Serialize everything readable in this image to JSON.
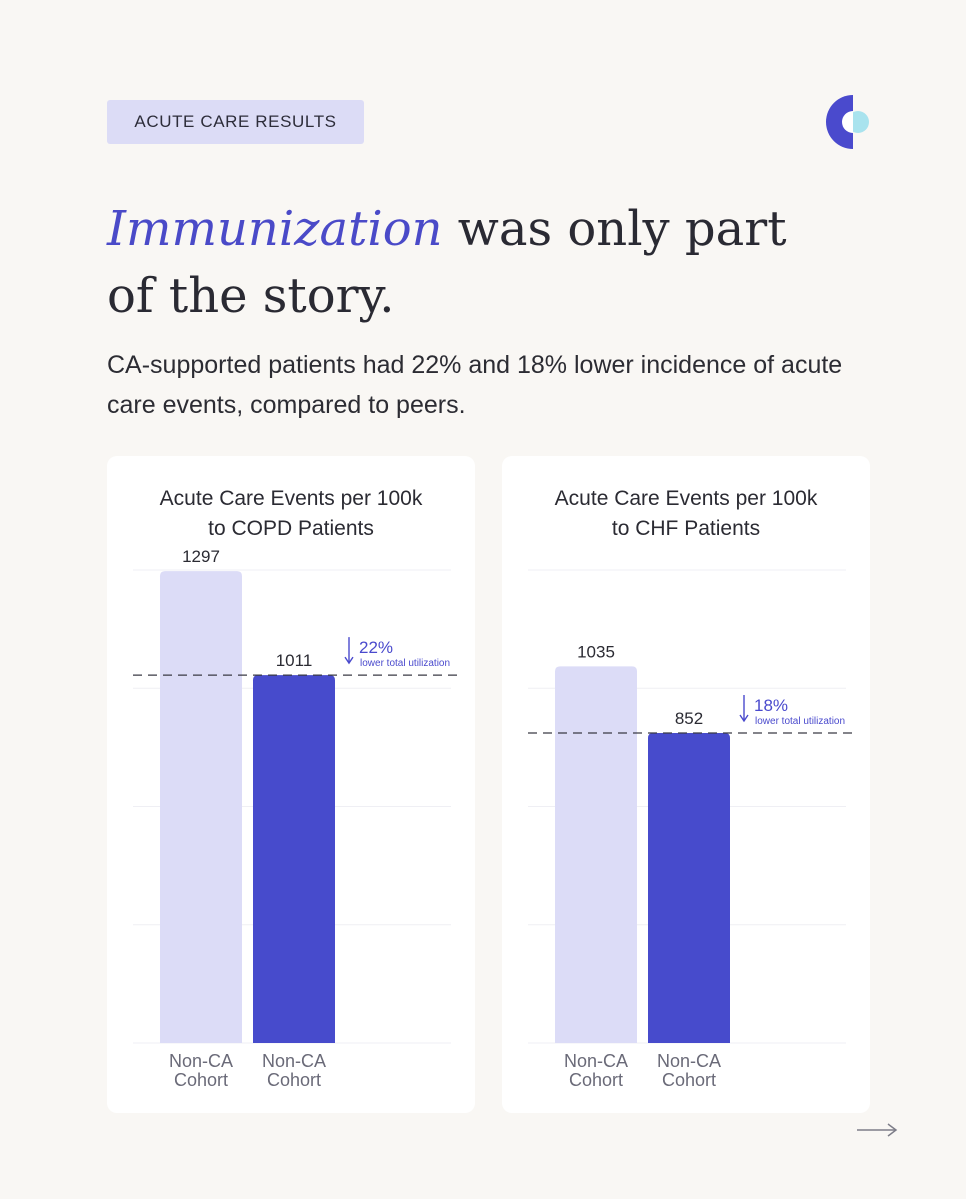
{
  "tag": "ACUTE CARE RESULTS",
  "headline": {
    "emphasis": "Immunization",
    "line1_rest": " was only part",
    "line2": "of the story."
  },
  "subtitle": "CA-supported patients had 22% and 18% lower incidence of acute care events, compared to peers.",
  "colors": {
    "accent": "#4a4acd",
    "bar_light": "#dcdcf7",
    "bar_dark": "#474bcc",
    "tag_bg": "#dcdcf6",
    "background": "#f9f7f4"
  },
  "icons": [
    "logo-icon",
    "arrow-right-icon",
    "arrow-down-icon"
  ],
  "chart_data": [
    {
      "type": "bar",
      "title_line1": "Acute Care Events per 100k",
      "title_line2": "to COPD Patients",
      "categories": [
        "Non-CA Cohort",
        "Non-CA Cohort"
      ],
      "values": [
        1297,
        1011
      ],
      "value_labels": [
        "1297",
        "1011"
      ],
      "ylim": [
        0,
        1300
      ],
      "reference_line": 1011,
      "annotation": {
        "percent": "22%",
        "text": "lower total utilization"
      }
    },
    {
      "type": "bar",
      "title_line1": "Acute Care Events per 100k",
      "title_line2": "to CHF Patients",
      "categories": [
        "Non-CA Cohort",
        "Non-CA Cohort"
      ],
      "values": [
        1035,
        852
      ],
      "value_labels": [
        "1035",
        "852"
      ],
      "ylim": [
        0,
        1300
      ],
      "reference_line": 852,
      "annotation": {
        "percent": "18%",
        "text": "lower total utilization"
      }
    }
  ]
}
